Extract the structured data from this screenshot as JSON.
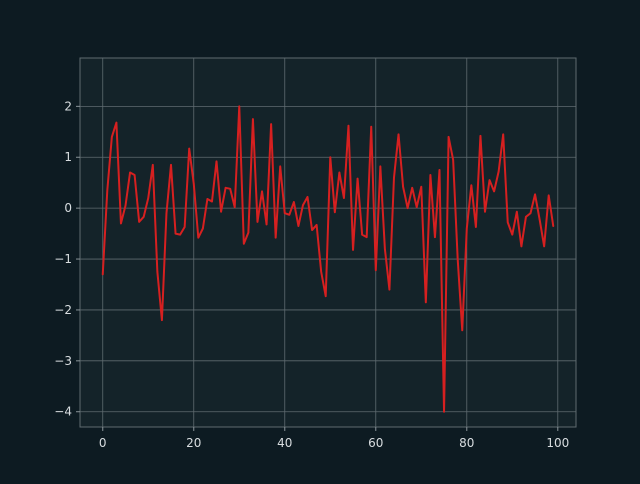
{
  "chart_data": {
    "type": "line",
    "title": "",
    "xlabel": "",
    "ylabel": "",
    "xlim": [
      -5,
      104
    ],
    "ylim": [
      -4.3,
      2.95
    ],
    "x_ticks": [
      0,
      20,
      40,
      60,
      80,
      100
    ],
    "y_ticks": [
      -4,
      -3,
      -2,
      -1,
      0,
      1,
      2
    ],
    "x_tick_labels": [
      "0",
      "20",
      "40",
      "60",
      "80",
      "100"
    ],
    "y_tick_labels": [
      "−4",
      "−3",
      "−2",
      "−1",
      "0",
      "1",
      "2"
    ],
    "grid": true,
    "legend": "none",
    "series": [
      {
        "color": "#d62020",
        "x": [
          0,
          1,
          2,
          3,
          4,
          5,
          6,
          7,
          8,
          9,
          10,
          11,
          12,
          13,
          14,
          15,
          16,
          17,
          18,
          19,
          20,
          21,
          22,
          23,
          24,
          25,
          26,
          27,
          28,
          29,
          30,
          31,
          32,
          33,
          34,
          35,
          36,
          37,
          38,
          39,
          40,
          41,
          42,
          43,
          44,
          45,
          46,
          47,
          48,
          49,
          50,
          51,
          52,
          53,
          54,
          55,
          56,
          57,
          58,
          59,
          60,
          61,
          62,
          63,
          64,
          65,
          66,
          67,
          68,
          69,
          70,
          71,
          72,
          73,
          74,
          75,
          76,
          77,
          78,
          79,
          80,
          81,
          82,
          83,
          84,
          85,
          86,
          87,
          88,
          89,
          90,
          91,
          92,
          93,
          94,
          95,
          96,
          97,
          98,
          99
        ],
        "values": [
          -1.3,
          0.35,
          1.4,
          1.68,
          -0.3,
          0.05,
          0.7,
          0.65,
          -0.27,
          -0.17,
          0.2,
          0.85,
          -1.25,
          -2.2,
          -0.1,
          0.85,
          -0.5,
          -0.52,
          -0.37,
          1.17,
          0.48,
          -0.58,
          -0.4,
          0.18,
          0.13,
          0.92,
          -0.07,
          0.4,
          0.38,
          0.02,
          2.0,
          -0.7,
          -0.48,
          1.75,
          -0.27,
          0.33,
          -0.32,
          1.65,
          -0.58,
          0.82,
          -0.1,
          -0.13,
          0.12,
          -0.35,
          0.06,
          0.22,
          -0.43,
          -0.33,
          -1.25,
          -1.73,
          1.0,
          -0.08,
          0.7,
          0.2,
          1.62,
          -0.82,
          0.58,
          -0.52,
          -0.57,
          1.6,
          -1.22,
          0.82,
          -0.8,
          -1.6,
          0.6,
          1.45,
          0.42,
          0.0,
          0.4,
          0.02,
          0.42,
          -1.85,
          0.65,
          -0.57,
          0.75,
          -4.0,
          1.4,
          0.95,
          -1.0,
          -2.4,
          -0.4,
          0.45,
          -0.37,
          1.42,
          -0.07,
          0.55,
          0.33,
          0.72,
          1.45,
          -0.28,
          -0.52,
          -0.07,
          -0.75,
          -0.17,
          -0.1,
          0.27,
          -0.22,
          -0.75,
          0.25,
          -0.35
        ]
      }
    ]
  }
}
